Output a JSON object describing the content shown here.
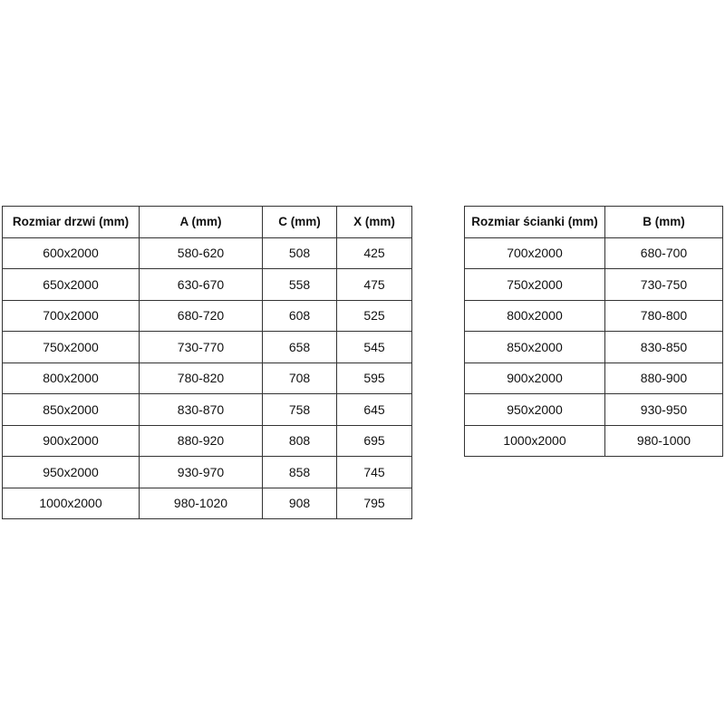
{
  "doors_table": {
    "headers": [
      "Rozmiar drzwi (mm)",
      "A (mm)",
      "C (mm)",
      "X (mm)"
    ],
    "rows": [
      [
        "600x2000",
        "580-620",
        "508",
        "425"
      ],
      [
        "650x2000",
        "630-670",
        "558",
        "475"
      ],
      [
        "700x2000",
        "680-720",
        "608",
        "525"
      ],
      [
        "750x2000",
        "730-770",
        "658",
        "545"
      ],
      [
        "800x2000",
        "780-820",
        "708",
        "595"
      ],
      [
        "850x2000",
        "830-870",
        "758",
        "645"
      ],
      [
        "900x2000",
        "880-920",
        "808",
        "695"
      ],
      [
        "950x2000",
        "930-970",
        "858",
        "745"
      ],
      [
        "1000x2000",
        "980-1020",
        "908",
        "795"
      ]
    ]
  },
  "wall_table": {
    "headers": [
      "Rozmiar ścianki (mm)",
      "B (mm)"
    ],
    "rows": [
      [
        "700x2000",
        "680-700"
      ],
      [
        "750x2000",
        "730-750"
      ],
      [
        "800x2000",
        "780-800"
      ],
      [
        "850x2000",
        "830-850"
      ],
      [
        "900x2000",
        "880-900"
      ],
      [
        "950x2000",
        "930-950"
      ],
      [
        "1000x2000",
        "980-1000"
      ]
    ]
  }
}
